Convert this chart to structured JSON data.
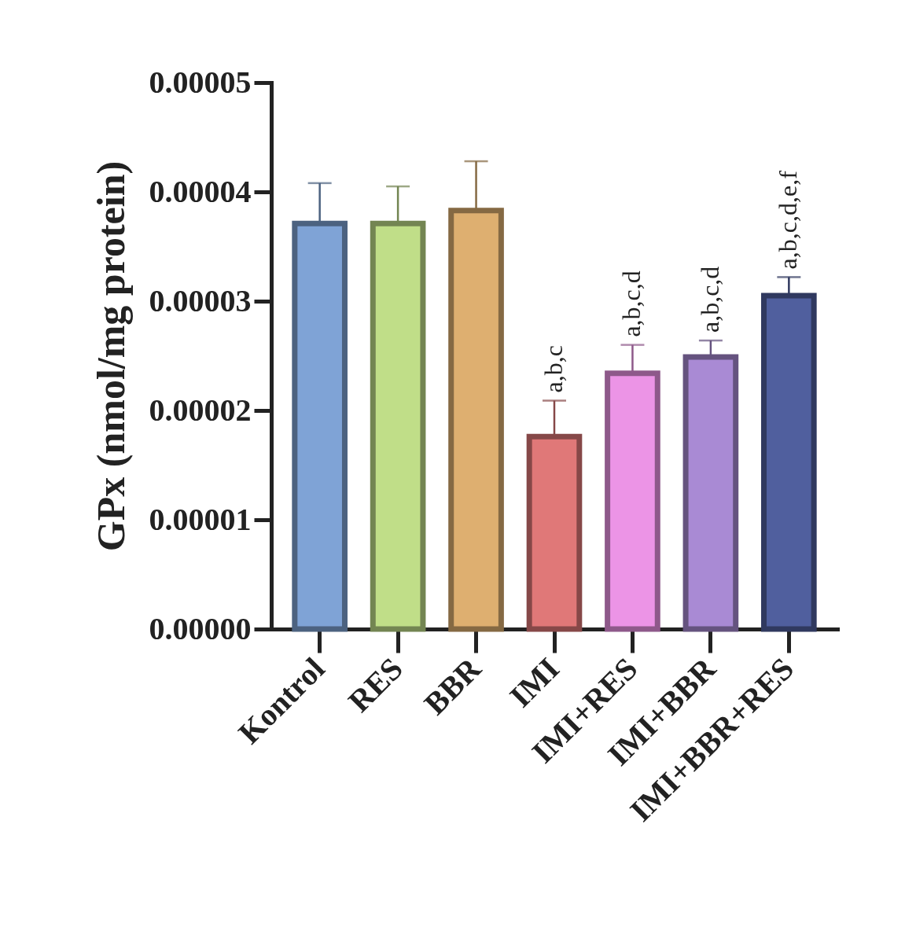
{
  "chart_data": {
    "type": "bar",
    "ylabel": "GPx (nmol/mg protein)",
    "categories": [
      "Kontrol",
      "RES",
      "BBR",
      "IMI",
      "IMI+RES",
      "IMI+BBR",
      "IMI+BBR+RES"
    ],
    "values": [
      3.71e-05,
      3.71e-05,
      3.83e-05,
      1.76e-05,
      2.34e-05,
      2.49e-05,
      3.05e-05
    ],
    "errors": [
      [
        3.71e-05,
        4.08e-05
      ],
      [
        3.71e-05,
        4.05e-05
      ],
      [
        3.83e-05,
        4.28e-05
      ],
      [
        1.76e-05,
        2.09e-05
      ],
      [
        2.34e-05,
        2.6e-05
      ],
      [
        2.49e-05,
        2.64e-05
      ],
      [
        3.05e-05,
        3.22e-05
      ]
    ],
    "colors": [
      "#7fa3d6",
      "#c0de88",
      "#deaf70",
      "#e07878",
      "#ec94e6",
      "#a98ad4",
      "#505f9e"
    ],
    "ylim": [
      0,
      5e-05
    ],
    "yticks": [
      {
        "value": 0,
        "label": "0.00000"
      },
      {
        "value": 1e-05,
        "label": "0.00001"
      },
      {
        "value": 2e-05,
        "label": "0.00002"
      },
      {
        "value": 3e-05,
        "label": "0.00003"
      },
      {
        "value": 4e-05,
        "label": "0.00004"
      },
      {
        "value": 5e-05,
        "label": "0.00005"
      }
    ],
    "annotations": [
      {
        "text": "a,b,c",
        "x": "IMI",
        "y": 2.09e-05
      },
      {
        "text": "a,b,c,d",
        "x": "IMI+RES",
        "y": 2.6e-05
      },
      {
        "text": "a,b,c,d",
        "x": "IMI+BBR",
        "y": 2.64e-05
      },
      {
        "text": "a,b,c,d,e,f",
        "x": "IMI+BBR+RES",
        "y": 3.22e-05
      }
    ],
    "grid": false
  }
}
